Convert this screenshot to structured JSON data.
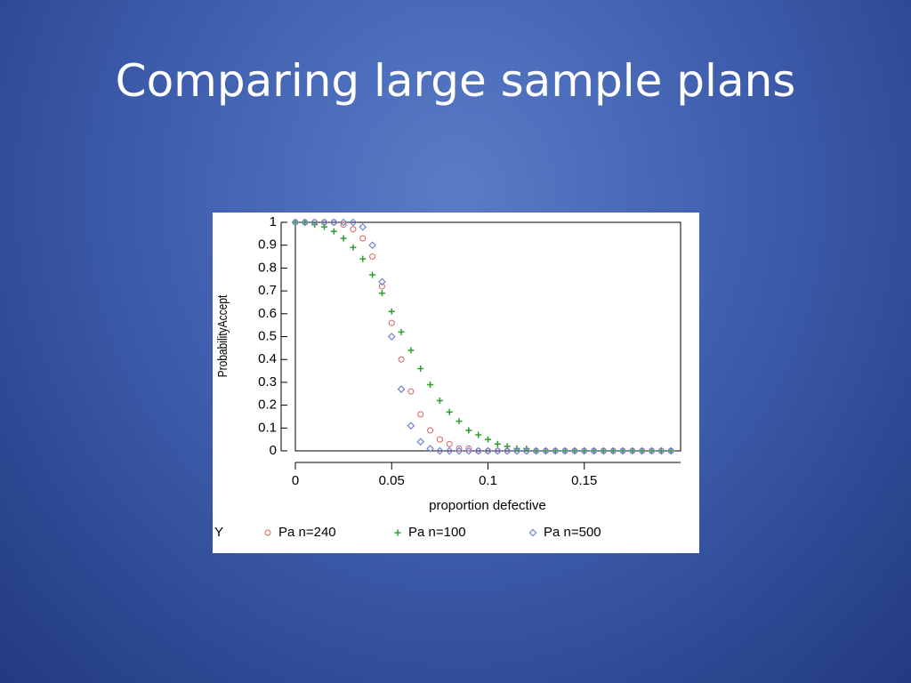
{
  "slide_title": "Comparing large sample plans",
  "chart_data": {
    "type": "scatter",
    "xlabel": "proportion defective",
    "ylabel": "ProbabilityAccept",
    "legend_title": "Y",
    "xlim": [
      0,
      0.2
    ],
    "xticks": [
      0,
      0.05,
      0.1,
      0.15
    ],
    "ylim": [
      0,
      1
    ],
    "yticks": [
      0,
      0.1,
      0.2,
      0.3,
      0.4,
      0.5,
      0.6,
      0.7,
      0.8,
      0.9,
      1
    ],
    "x": [
      0,
      0.005,
      0.01,
      0.015,
      0.02,
      0.025,
      0.03,
      0.035,
      0.04,
      0.045,
      0.05,
      0.055,
      0.06,
      0.065,
      0.07,
      0.075,
      0.08,
      0.085,
      0.09,
      0.095,
      0.1,
      0.105,
      0.11,
      0.115,
      0.12,
      0.125,
      0.13,
      0.135,
      0.14,
      0.145,
      0.15,
      0.155,
      0.16,
      0.165,
      0.17,
      0.175,
      0.18,
      0.185,
      0.19,
      0.195
    ],
    "series": [
      {
        "name": "Pa n=240",
        "color": "#d9605c",
        "marker": "circle",
        "values": [
          1,
          1,
          1,
          1,
          1,
          0.99,
          0.97,
          0.93,
          0.85,
          0.72,
          0.56,
          0.4,
          0.26,
          0.16,
          0.09,
          0.05,
          0.03,
          0.01,
          0.01,
          0,
          0,
          0,
          0,
          0,
          0,
          0,
          0,
          0,
          0,
          0,
          0,
          0,
          0,
          0,
          0,
          0,
          0,
          0,
          0,
          0
        ]
      },
      {
        "name": "Pa n=100",
        "color": "#2ca02c",
        "marker": "plus",
        "values": [
          1,
          1,
          0.99,
          0.98,
          0.96,
          0.93,
          0.89,
          0.84,
          0.77,
          0.69,
          0.61,
          0.52,
          0.44,
          0.36,
          0.29,
          0.22,
          0.17,
          0.13,
          0.09,
          0.07,
          0.05,
          0.03,
          0.02,
          0.01,
          0.01,
          0,
          0,
          0,
          0,
          0,
          0,
          0,
          0,
          0,
          0,
          0,
          0,
          0,
          0,
          0
        ]
      },
      {
        "name": "Pa n=500",
        "color": "#6f84d6",
        "marker": "diamond",
        "values": [
          1,
          1,
          1,
          1,
          1,
          1,
          1,
          0.98,
          0.9,
          0.74,
          0.5,
          0.27,
          0.11,
          0.04,
          0.01,
          0,
          0,
          0,
          0,
          0,
          0,
          0,
          0,
          0,
          0,
          0,
          0,
          0,
          0,
          0,
          0,
          0,
          0,
          0,
          0,
          0,
          0,
          0,
          0,
          0
        ]
      }
    ]
  }
}
